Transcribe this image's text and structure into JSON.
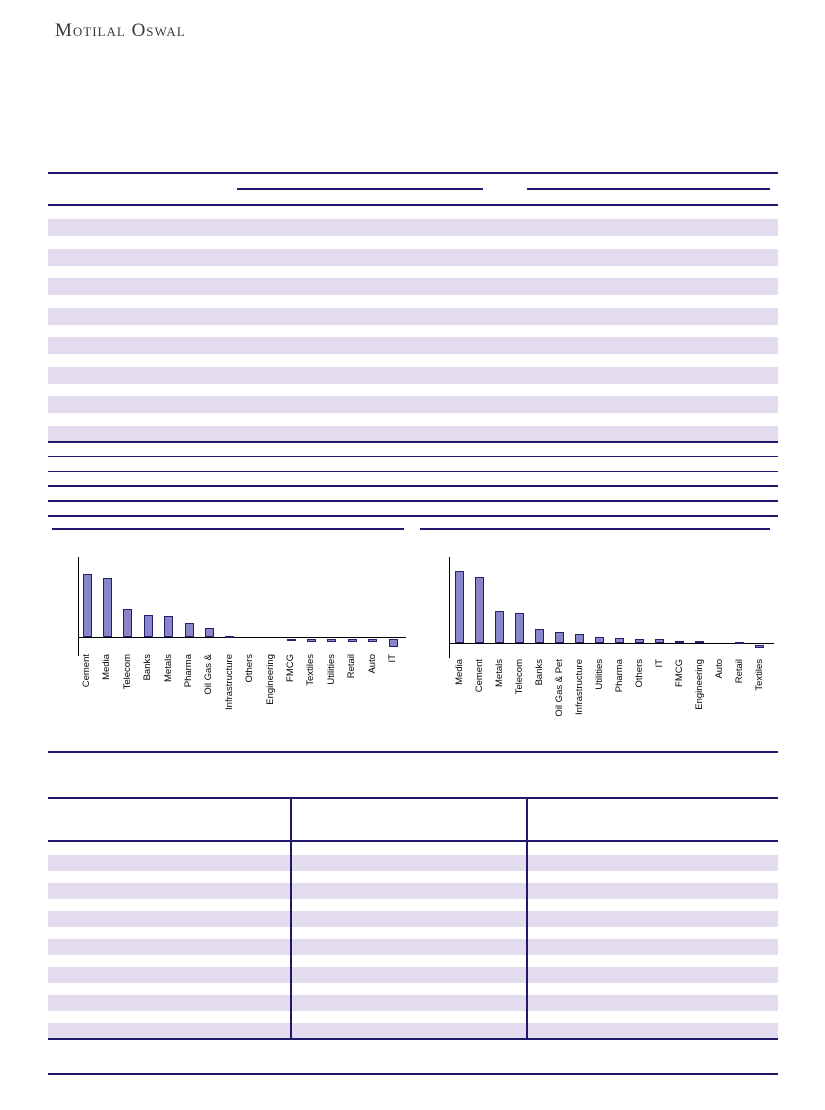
{
  "brand": {
    "logo_text": "Motilal Oswal"
  },
  "colors": {
    "rule_navy": "#1f196b",
    "row_stripe_lavender": "#e3dcee",
    "bar_fill": "#8886c9",
    "bar_border": "#23206e",
    "axis_black": "#000000",
    "label_text": "#000000",
    "logo_text": "#3b3836"
  },
  "top_table": {
    "header_underline_segments": 2,
    "striped_rows": 8,
    "ruled_rows": 5,
    "visible_cell_text": []
  },
  "chart_title_underlines": 2,
  "chart_data": [
    {
      "type": "bar",
      "title": "",
      "xlabel": "",
      "ylabel": "",
      "grid": false,
      "legend": false,
      "axis_value_labels_visible": false,
      "categories": [
        "Cement",
        "Media",
        "Telecom",
        "Banks",
        "Metals",
        "Pharma",
        "Oil Gas &",
        "Infrastructure",
        "Others",
        "Engineering",
        "FMCG",
        "Textiles",
        "Utilities",
        "Retail",
        "Auto",
        "IT"
      ],
      "values": [
        63,
        59,
        28,
        22,
        21,
        14,
        9,
        1.5,
        0,
        0,
        -2.5,
        -3,
        -3,
        -3,
        -3.5,
        -8
      ],
      "units": "relative-pixels (no numeric axis labels visible)"
    },
    {
      "type": "bar",
      "title": "",
      "xlabel": "",
      "ylabel": "",
      "grid": false,
      "legend": false,
      "axis_value_labels_visible": false,
      "categories": [
        "Media",
        "Cement",
        "Metals",
        "Telecom",
        "Banks",
        "Oil Gas & Pet",
        "Infrastructure",
        "Utilities",
        "Pharma",
        "Others",
        "IT",
        "FMCG",
        "Engineering",
        "Auto",
        "Retail",
        "Textiles"
      ],
      "values": [
        72,
        66,
        32,
        30,
        14,
        11,
        9,
        6,
        5,
        4,
        4,
        2,
        2.5,
        0,
        1.5,
        -3
      ],
      "units": "relative-pixels (no numeric axis labels visible)"
    }
  ],
  "bottom_table": {
    "columns": 3,
    "striped_rows": 7,
    "visible_cell_text": []
  }
}
